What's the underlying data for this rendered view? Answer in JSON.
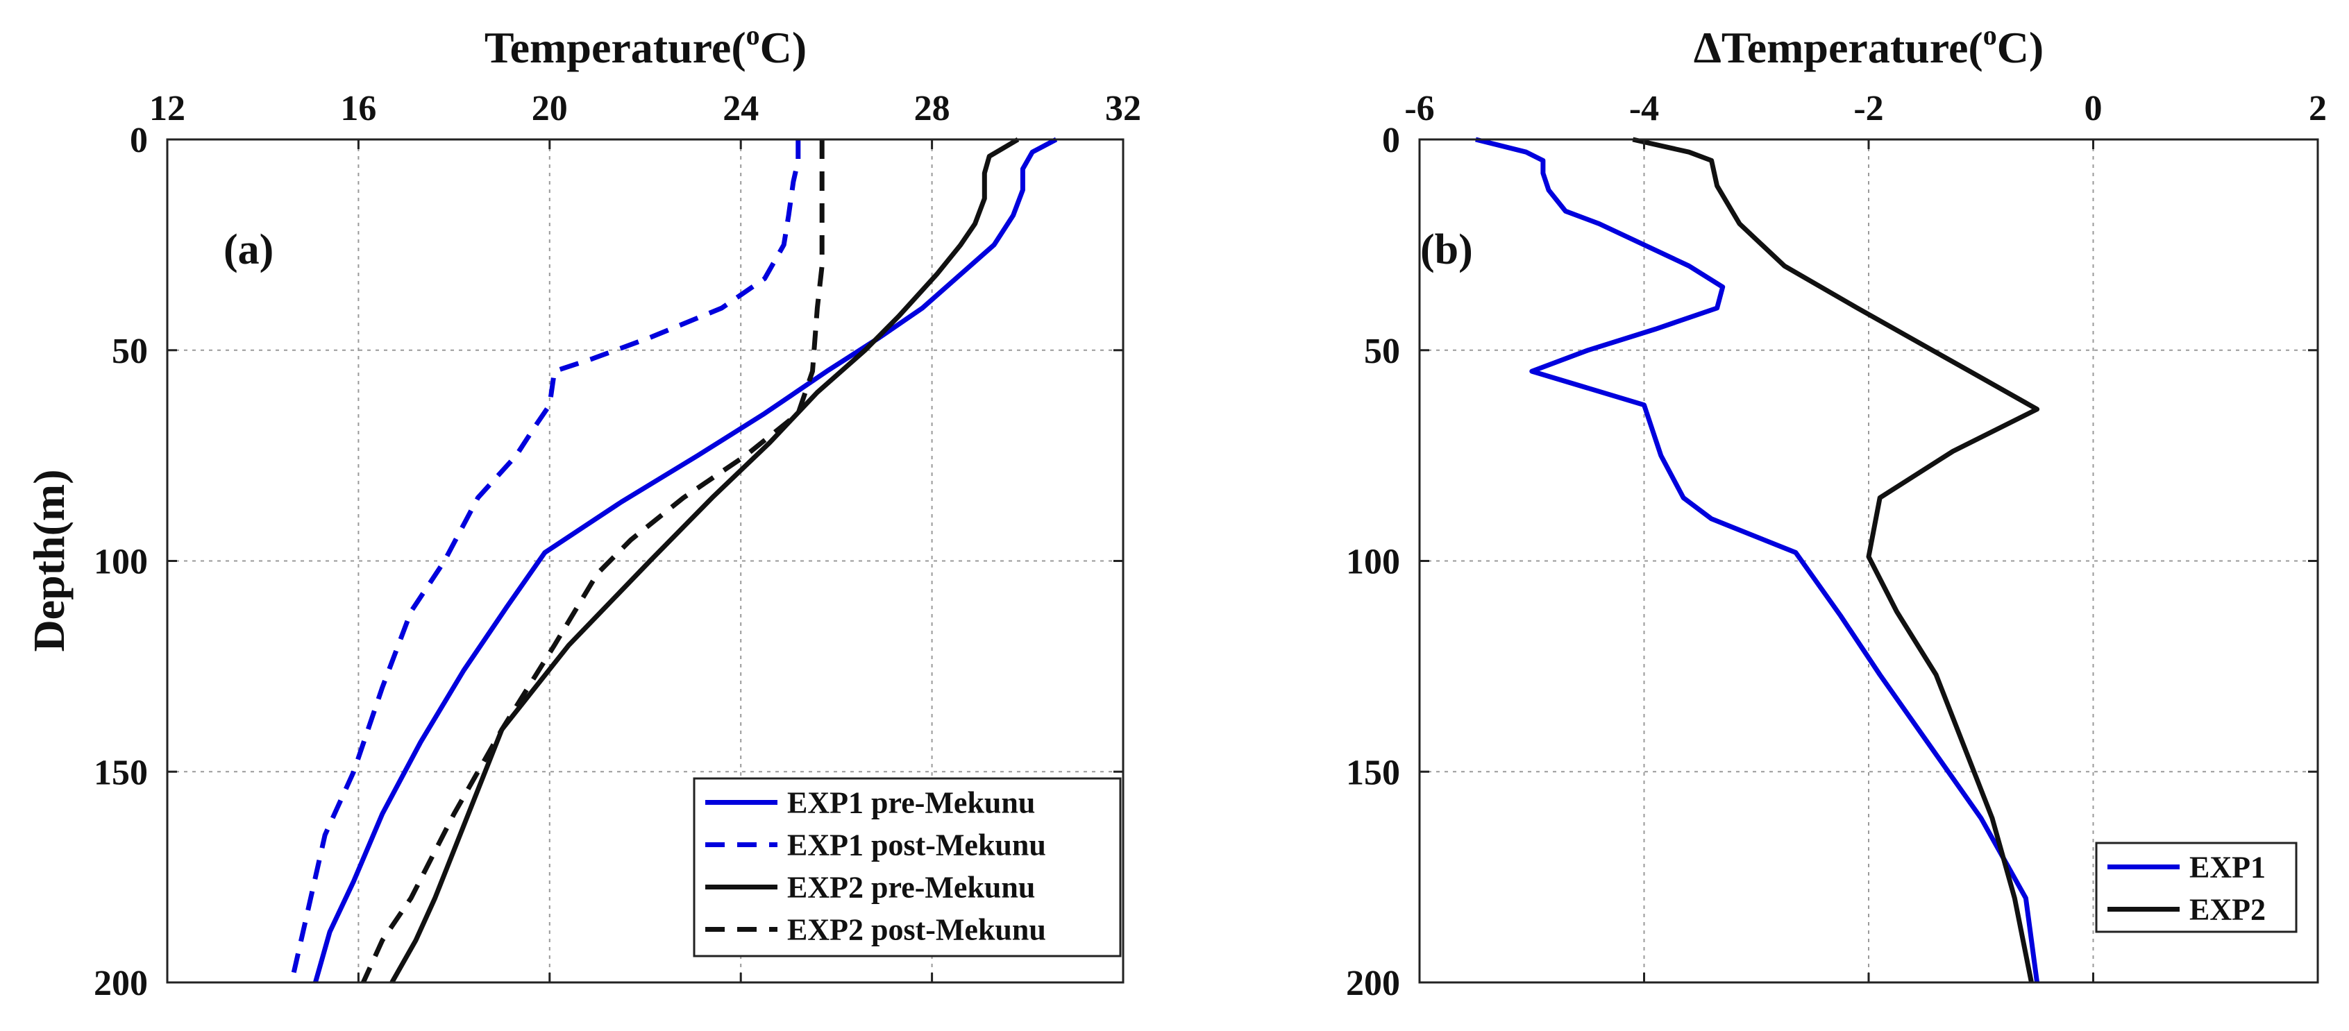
{
  "chart_data": [
    {
      "type": "line",
      "panel_label": "(a)",
      "title": "",
      "xlabel": "Temperature(",
      "xlabel_sup": "o",
      "xlabel_unit": "C)",
      "ylabel": "Depth(m)",
      "xaxis_position": "top",
      "yaxis_direction": "reversed",
      "xlim": [
        12,
        32
      ],
      "ylim": [
        0,
        200
      ],
      "xticks": [
        12,
        16,
        20,
        24,
        28,
        32
      ],
      "yticks": [
        0,
        50,
        100,
        150,
        200
      ],
      "xtick_labels": [
        "12",
        "16",
        "20",
        "24",
        "28",
        "32"
      ],
      "ytick_labels": [
        "0",
        "50",
        "100",
        "150",
        "200"
      ],
      "grid": true,
      "legend_position": "bottom-right",
      "series": [
        {
          "name": "EXP1 pre-Mekunu",
          "color": "#0000dd",
          "dash": "solid",
          "x": [
            30.6,
            30.1,
            29.9,
            29.9,
            29.7,
            29.3,
            28.6,
            27.8,
            26.9,
            25.8,
            24.5,
            23.1,
            21.5,
            19.9,
            19.1,
            18.2,
            17.3,
            16.5,
            15.9,
            15.4,
            15.1
          ],
          "y": [
            0,
            3,
            7,
            12,
            18,
            25,
            32,
            40,
            47,
            55,
            65,
            75,
            86,
            98,
            111,
            126,
            143,
            160,
            176,
            188,
            200
          ]
        },
        {
          "name": "EXP1 post-Mekunu",
          "color": "#0000dd",
          "dash": "dashed",
          "x": [
            25.2,
            25.2,
            25.1,
            25.0,
            24.9,
            24.5,
            23.6,
            22.1,
            20.9,
            20.1,
            20.0,
            19.7,
            19.3,
            18.5,
            17.8,
            17.1,
            16.5,
            15.9,
            15.3,
            14.9,
            14.6
          ],
          "y": [
            0,
            5,
            10,
            18,
            25,
            33,
            40,
            47,
            52,
            55,
            63,
            68,
            75,
            85,
            100,
            112,
            130,
            150,
            165,
            185,
            200
          ]
        },
        {
          "name": "EXP2 pre-Mekunu",
          "color": "#111111",
          "dash": "solid",
          "x": [
            29.8,
            29.2,
            29.1,
            29.1,
            28.9,
            28.6,
            28.1,
            27.3,
            26.6,
            25.6,
            24.6,
            23.4,
            22.1,
            20.4,
            19.0,
            17.6,
            17.2,
            16.7
          ],
          "y": [
            0,
            4,
            8,
            14,
            20,
            25,
            32,
            42,
            50,
            60,
            72,
            85,
            100,
            120,
            140,
            180,
            190,
            200
          ]
        },
        {
          "name": "EXP2 post-Mekunu",
          "color": "#111111",
          "dash": "dashed",
          "x": [
            25.7,
            25.7,
            25.7,
            25.7,
            25.6,
            25.5,
            25.2,
            24.1,
            22.8,
            21.7,
            21.0,
            20.1,
            19.0,
            18.0,
            17.1,
            16.5,
            16.1
          ],
          "y": [
            0,
            10,
            20,
            30,
            40,
            55,
            65,
            75,
            85,
            95,
            103,
            120,
            140,
            160,
            180,
            190,
            200
          ]
        }
      ]
    },
    {
      "type": "line",
      "panel_label": "(b)",
      "title": "",
      "xlabel": "ΔTemperature(",
      "xlabel_sup": "o",
      "xlabel_unit": "C)",
      "ylabel": "",
      "xaxis_position": "top",
      "yaxis_direction": "reversed",
      "xlim": [
        -6,
        2
      ],
      "ylim": [
        0,
        200
      ],
      "xticks": [
        -6,
        -4,
        -2,
        0,
        2
      ],
      "yticks": [
        0,
        50,
        100,
        150,
        200
      ],
      "xtick_labels": [
        "-6",
        "-4",
        "-2",
        "0",
        "2"
      ],
      "ytick_labels": [
        "0",
        "50",
        "100",
        "150",
        "200"
      ],
      "grid": true,
      "legend_position": "bottom-right",
      "series": [
        {
          "name": "EXP1",
          "color": "#0000dd",
          "dash": "solid",
          "x": [
            -5.5,
            -5.05,
            -4.9,
            -4.9,
            -4.85,
            -4.7,
            -4.4,
            -3.6,
            -3.3,
            -3.35,
            -3.9,
            -4.5,
            -5.0,
            -4.0,
            -3.85,
            -3.65,
            -3.4,
            -2.65,
            -2.25,
            -1.9,
            -1.45,
            -1.0,
            -0.6,
            -0.5
          ],
          "y": [
            0,
            3,
            5,
            8,
            12,
            17,
            20,
            30,
            35,
            40,
            45,
            50,
            55,
            63,
            75,
            85,
            90,
            98,
            113,
            127,
            144,
            161,
            180,
            200
          ]
        },
        {
          "name": "EXP2",
          "color": "#111111",
          "dash": "solid",
          "x": [
            -4.1,
            -3.6,
            -3.4,
            -3.35,
            -3.15,
            -2.75,
            -2.1,
            -1.1,
            -0.5,
            -1.25,
            -1.9,
            -2.0,
            -1.75,
            -1.4,
            -1.15,
            -0.9,
            -0.7,
            -0.55
          ],
          "y": [
            0,
            3,
            5,
            11,
            20,
            30,
            40,
            55,
            64,
            74,
            85,
            99,
            112,
            127,
            144,
            161,
            180,
            200
          ]
        }
      ]
    }
  ]
}
